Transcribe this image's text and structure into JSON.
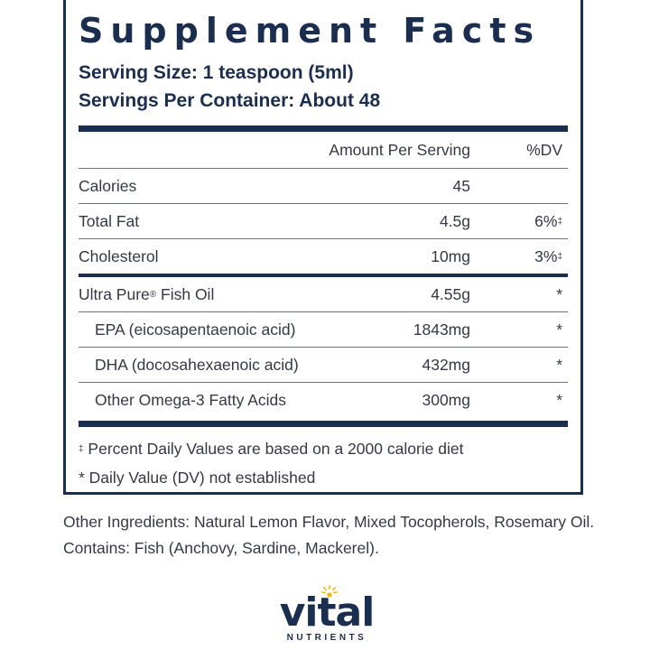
{
  "panel": {
    "title": "Supplement Facts",
    "serving_size": "Serving Size: 1 teaspoon (5ml)",
    "servings_per_container": "Servings Per Container: About 48",
    "header": {
      "amount": "Amount Per Serving",
      "dv": "%DV"
    },
    "rows_group1": [
      {
        "name": "Calories",
        "amount": "45",
        "dv": "",
        "dv_mark": ""
      },
      {
        "name": "Total Fat",
        "amount": "4.5g",
        "dv": "6%",
        "dv_mark": "‡"
      },
      {
        "name": "Cholesterol",
        "amount": "10mg",
        "dv": "3%",
        "dv_mark": "‡"
      }
    ],
    "rows_group2": [
      {
        "name": "Ultra Pure",
        "name_mark": "®",
        "name_suffix": " Fish Oil",
        "amount": "4.55g",
        "dv": "*"
      },
      {
        "name": "EPA (eicosapentaenoic acid)",
        "amount": "1843mg",
        "dv": "*"
      },
      {
        "name": "DHA (docosahexaenoic acid)",
        "amount": "432mg",
        "dv": "*"
      },
      {
        "name": "Other Omega-3 Fatty Acids",
        "amount": "300mg",
        "dv": "*"
      }
    ],
    "footnotes": {
      "pdv_mark": "‡",
      "pdv_text": " Percent Daily Values are based on a 2000 calorie diet",
      "dv_not_established": "* Daily Value (DV) not established"
    }
  },
  "other_ingredients": "Other Ingredients: Natural Lemon Flavor, Mixed Tocopherols, Rosemary Oil.",
  "contains": "Contains: Fish (Anchovy, Sardine, Mackerel).",
  "logo": {
    "word": "vital",
    "sub": "NUTRIENTS",
    "icon": "sun-icon",
    "accent": "#f2b705",
    "brand": "#1c2e4f"
  }
}
